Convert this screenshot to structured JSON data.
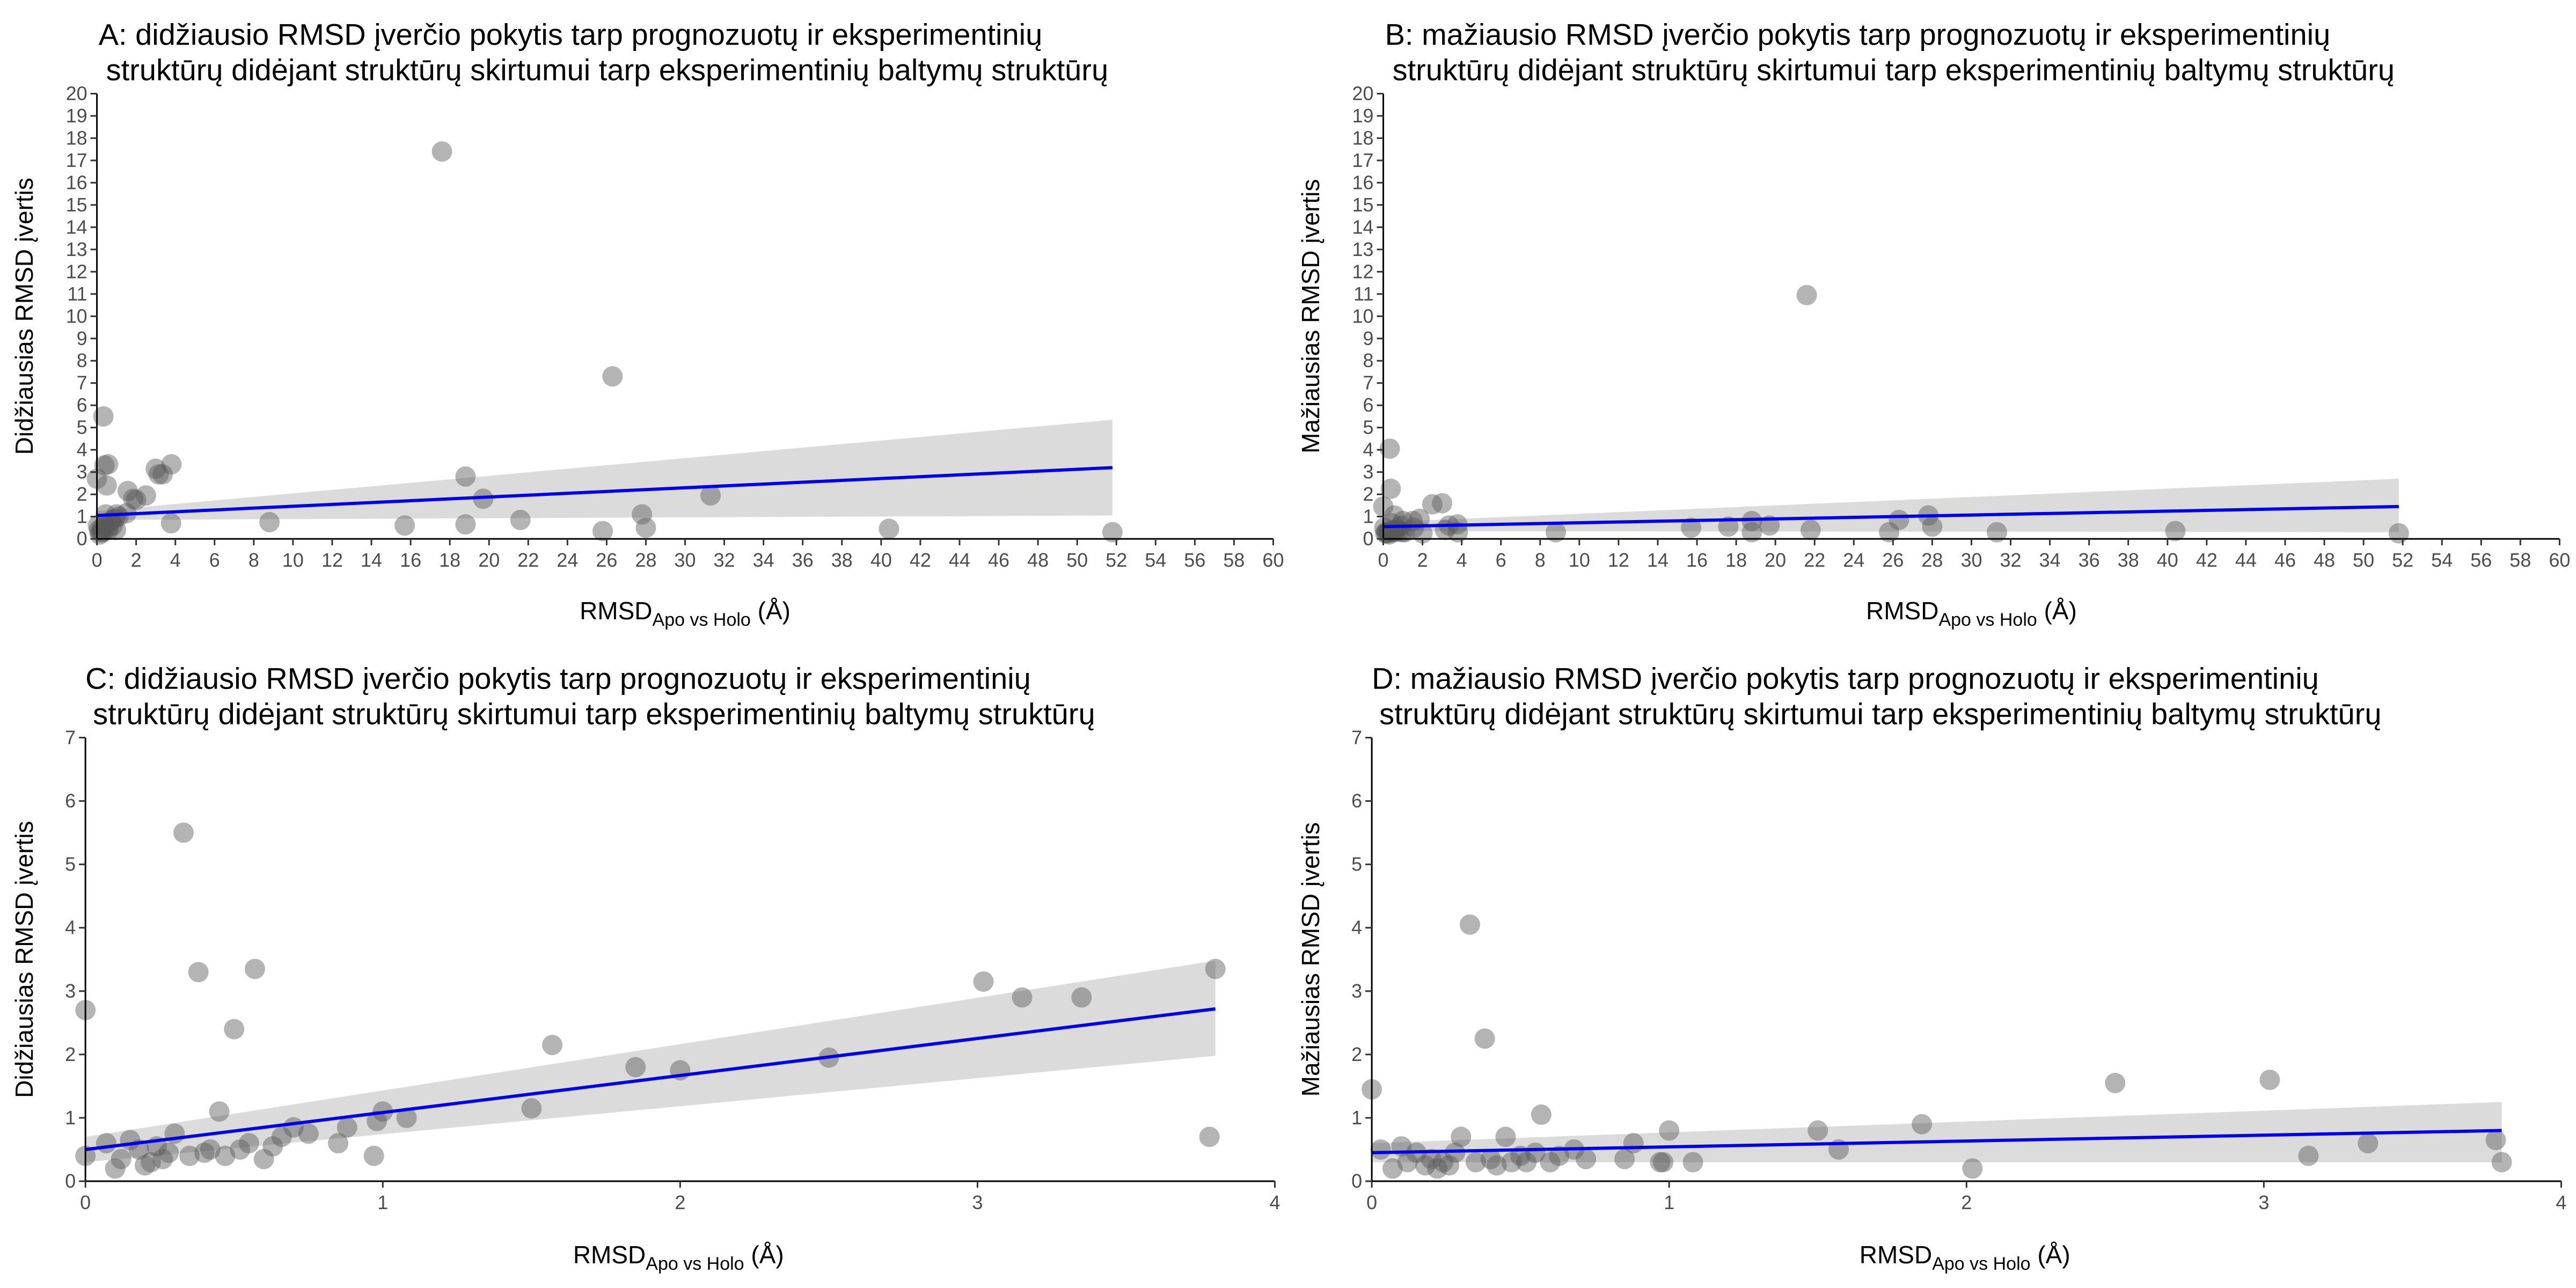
{
  "chart_data": [
    {
      "id": "A",
      "type": "scatter",
      "title": [
        "A: didžiausio RMSD įverčio pokytis tarp prognozuotų ir eksperimentinių",
        "struktūrų didėjant struktūrų skirtumui tarp eksperimentinių baltymų struktūrų"
      ],
      "xlabel": {
        "main": "RMSD",
        "sub": "Apo vs Holo",
        "unit": " (Å)"
      },
      "ylabel": "Didžiausias RMSD įvertis",
      "xlim": [
        0,
        60
      ],
      "ylim": [
        0,
        20
      ],
      "xticks": [
        0,
        2,
        4,
        6,
        8,
        10,
        12,
        14,
        16,
        18,
        20,
        22,
        24,
        26,
        28,
        30,
        32,
        34,
        36,
        38,
        40,
        42,
        44,
        46,
        48,
        50,
        52,
        54,
        56,
        58,
        60
      ],
      "yticks": [
        0,
        1,
        2,
        3,
        4,
        5,
        6,
        7,
        8,
        9,
        10,
        11,
        12,
        13,
        14,
        15,
        16,
        17,
        18,
        19,
        20
      ],
      "point_color": "#595959",
      "line_color": "#0000ee",
      "band_color": "#d9d9d9",
      "points": [
        [
          0.0,
          2.7
        ],
        [
          0.05,
          0.6
        ],
        [
          0.1,
          0.4
        ],
        [
          0.15,
          0.2
        ],
        [
          0.2,
          0.3
        ],
        [
          0.25,
          0.5
        ],
        [
          0.3,
          0.3
        ],
        [
          0.33,
          5.5
        ],
        [
          0.38,
          3.3
        ],
        [
          0.4,
          0.6
        ],
        [
          0.45,
          1.1
        ],
        [
          0.5,
          2.4
        ],
        [
          0.55,
          0.5
        ],
        [
          0.57,
          3.35
        ],
        [
          0.6,
          0.4
        ],
        [
          0.7,
          0.8
        ],
        [
          0.8,
          0.6
        ],
        [
          0.9,
          0.9
        ],
        [
          0.97,
          0.4
        ],
        [
          1.0,
          1.1
        ],
        [
          1.1,
          1.0
        ],
        [
          1.5,
          1.15
        ],
        [
          1.57,
          2.15
        ],
        [
          1.85,
          1.8
        ],
        [
          2.0,
          1.75
        ],
        [
          2.5,
          1.95
        ],
        [
          3.0,
          3.15
        ],
        [
          3.15,
          2.9
        ],
        [
          3.35,
          2.9
        ],
        [
          3.78,
          0.7
        ],
        [
          3.8,
          3.35
        ],
        [
          8.8,
          0.75
        ],
        [
          15.7,
          0.6
        ],
        [
          17.6,
          17.4
        ],
        [
          18.8,
          0.65
        ],
        [
          18.8,
          2.8
        ],
        [
          19.7,
          1.8
        ],
        [
          21.6,
          0.85
        ],
        [
          25.8,
          0.35
        ],
        [
          26.3,
          7.3
        ],
        [
          27.8,
          1.1
        ],
        [
          28.0,
          0.5
        ],
        [
          31.3,
          1.95
        ],
        [
          40.4,
          0.45
        ],
        [
          51.8,
          0.3
        ]
      ],
      "fit": {
        "x": [
          0,
          51.8
        ],
        "y": [
          1.05,
          3.2
        ],
        "lower": [
          0.85,
          1.05
        ],
        "upper": [
          1.25,
          5.35
        ]
      }
    },
    {
      "id": "B",
      "type": "scatter",
      "title": [
        "B: mažiausio RMSD įverčio pokytis tarp prognozuotų ir eksperimentinių",
        "struktūrų didėjant struktūrų skirtumui tarp eksperimentinių baltymų struktūrų"
      ],
      "xlabel": {
        "main": "RMSD",
        "sub": "Apo vs Holo",
        "unit": " (Å)"
      },
      "ylabel": "Mažiausias RMSD įvertis",
      "xlim": [
        0,
        60
      ],
      "ylim": [
        0,
        20
      ],
      "xticks": [
        0,
        2,
        4,
        6,
        8,
        10,
        12,
        14,
        16,
        18,
        20,
        22,
        24,
        26,
        28,
        30,
        32,
        34,
        36,
        38,
        40,
        42,
        44,
        46,
        48,
        50,
        52,
        54,
        56,
        58,
        60
      ],
      "yticks": [
        0,
        1,
        2,
        3,
        4,
        5,
        6,
        7,
        8,
        9,
        10,
        11,
        12,
        13,
        14,
        15,
        16,
        17,
        18,
        19,
        20
      ],
      "point_color": "#595959",
      "line_color": "#0000ee",
      "band_color": "#d9d9d9",
      "points": [
        [
          0.0,
          1.45
        ],
        [
          0.05,
          0.5
        ],
        [
          0.1,
          0.25
        ],
        [
          0.15,
          0.3
        ],
        [
          0.2,
          0.25
        ],
        [
          0.25,
          0.3
        ],
        [
          0.3,
          0.2
        ],
        [
          0.33,
          4.05
        ],
        [
          0.38,
          2.25
        ],
        [
          0.4,
          0.3
        ],
        [
          0.45,
          0.7
        ],
        [
          0.5,
          0.35
        ],
        [
          0.55,
          0.4
        ],
        [
          0.57,
          1.05
        ],
        [
          0.6,
          0.3
        ],
        [
          0.7,
          0.45
        ],
        [
          0.8,
          0.35
        ],
        [
          0.9,
          0.6
        ],
        [
          0.97,
          0.3
        ],
        [
          1.0,
          0.8
        ],
        [
          1.1,
          0.3
        ],
        [
          1.5,
          0.8
        ],
        [
          1.57,
          0.5
        ],
        [
          1.85,
          0.9
        ],
        [
          2.0,
          0.25
        ],
        [
          2.5,
          1.55
        ],
        [
          3.0,
          1.6
        ],
        [
          3.15,
          0.4
        ],
        [
          3.35,
          0.6
        ],
        [
          3.78,
          0.65
        ],
        [
          3.8,
          0.3
        ],
        [
          8.8,
          0.3
        ],
        [
          15.7,
          0.5
        ],
        [
          17.6,
          0.55
        ],
        [
          18.8,
          0.8
        ],
        [
          18.8,
          0.3
        ],
        [
          19.7,
          0.6
        ],
        [
          21.6,
          10.95
        ],
        [
          21.8,
          0.4
        ],
        [
          25.8,
          0.3
        ],
        [
          26.3,
          0.85
        ],
        [
          27.8,
          1.05
        ],
        [
          28.0,
          0.55
        ],
        [
          31.3,
          0.3
        ],
        [
          40.4,
          0.35
        ],
        [
          51.8,
          0.25
        ]
      ],
      "fit": {
        "x": [
          0,
          51.8
        ],
        "y": [
          0.55,
          1.45
        ],
        "lower": [
          0.35,
          0.3
        ],
        "upper": [
          0.75,
          2.7
        ]
      }
    },
    {
      "id": "C",
      "type": "scatter",
      "title": [
        "C: didžiausio RMSD įverčio pokytis tarp prognozuotų ir eksperimentinių",
        "struktūrų didėjant struktūrų skirtumui tarp eksperimentinių baltymų struktūrų"
      ],
      "xlabel": {
        "main": "RMSD",
        "sub": "Apo vs Holo",
        "unit": " (Å)"
      },
      "ylabel": "Didžiausias RMSD įvertis",
      "xlim": [
        0,
        4
      ],
      "ylim": [
        0,
        7
      ],
      "xticks": [
        0,
        1,
        2,
        3,
        4
      ],
      "yticks": [
        0,
        1,
        2,
        3,
        4,
        5,
        6,
        7
      ],
      "point_color": "#595959",
      "line_color": "#0000ee",
      "band_color": "#d9d9d9",
      "points": [
        [
          0.0,
          2.7
        ],
        [
          0.0,
          0.4
        ],
        [
          0.07,
          0.6
        ],
        [
          0.1,
          0.2
        ],
        [
          0.12,
          0.35
        ],
        [
          0.15,
          0.65
        ],
        [
          0.18,
          0.5
        ],
        [
          0.2,
          0.25
        ],
        [
          0.22,
          0.3
        ],
        [
          0.24,
          0.55
        ],
        [
          0.26,
          0.35
        ],
        [
          0.28,
          0.45
        ],
        [
          0.3,
          0.75
        ],
        [
          0.33,
          5.5
        ],
        [
          0.35,
          0.4
        ],
        [
          0.38,
          3.3
        ],
        [
          0.4,
          0.45
        ],
        [
          0.42,
          0.5
        ],
        [
          0.45,
          1.1
        ],
        [
          0.47,
          0.4
        ],
        [
          0.5,
          2.4
        ],
        [
          0.52,
          0.5
        ],
        [
          0.55,
          0.6
        ],
        [
          0.57,
          3.35
        ],
        [
          0.6,
          0.35
        ],
        [
          0.63,
          0.55
        ],
        [
          0.66,
          0.7
        ],
        [
          0.7,
          0.85
        ],
        [
          0.75,
          0.75
        ],
        [
          0.85,
          0.6
        ],
        [
          0.88,
          0.85
        ],
        [
          0.97,
          0.4
        ],
        [
          0.98,
          0.95
        ],
        [
          1.0,
          1.1
        ],
        [
          1.08,
          1.0
        ],
        [
          1.5,
          1.15
        ],
        [
          1.57,
          2.15
        ],
        [
          1.85,
          1.8
        ],
        [
          2.0,
          1.75
        ],
        [
          2.5,
          1.95
        ],
        [
          3.02,
          3.15
        ],
        [
          3.15,
          2.9
        ],
        [
          3.35,
          2.9
        ],
        [
          3.78,
          0.7
        ],
        [
          3.8,
          3.35
        ]
      ],
      "fit": {
        "x": [
          0,
          3.8
        ],
        "y": [
          0.5,
          2.72
        ],
        "lower": [
          0.3,
          1.98
        ],
        "upper": [
          0.7,
          3.48
        ]
      }
    },
    {
      "id": "D",
      "type": "scatter",
      "title": [
        "D: mažiausio RMSD įverčio pokytis tarp prognozuotų ir eksperimentinių",
        "struktūrų didėjant struktūrų skirtumui tarp eksperimentinių baltymų struktūrų"
      ],
      "xlabel": {
        "main": "RMSD",
        "sub": "Apo vs Holo",
        "unit": " (Å)"
      },
      "ylabel": "Mažiausias RMSD įvertis",
      "xlim": [
        0,
        4
      ],
      "ylim": [
        0,
        7
      ],
      "xticks": [
        0,
        1,
        2,
        3,
        4
      ],
      "yticks": [
        0,
        1,
        2,
        3,
        4,
        5,
        6,
        7
      ],
      "point_color": "#595959",
      "line_color": "#0000ee",
      "band_color": "#d9d9d9",
      "points": [
        [
          0.0,
          1.45
        ],
        [
          0.03,
          0.5
        ],
        [
          0.07,
          0.2
        ],
        [
          0.1,
          0.55
        ],
        [
          0.12,
          0.3
        ],
        [
          0.15,
          0.45
        ],
        [
          0.18,
          0.25
        ],
        [
          0.2,
          0.35
        ],
        [
          0.22,
          0.2
        ],
        [
          0.24,
          0.3
        ],
        [
          0.26,
          0.25
        ],
        [
          0.28,
          0.45
        ],
        [
          0.3,
          0.7
        ],
        [
          0.33,
          4.05
        ],
        [
          0.35,
          0.3
        ],
        [
          0.38,
          2.25
        ],
        [
          0.4,
          0.35
        ],
        [
          0.42,
          0.25
        ],
        [
          0.45,
          0.7
        ],
        [
          0.47,
          0.3
        ],
        [
          0.5,
          0.4
        ],
        [
          0.52,
          0.3
        ],
        [
          0.55,
          0.45
        ],
        [
          0.57,
          1.05
        ],
        [
          0.6,
          0.3
        ],
        [
          0.63,
          0.4
        ],
        [
          0.68,
          0.5
        ],
        [
          0.72,
          0.35
        ],
        [
          0.85,
          0.35
        ],
        [
          0.88,
          0.6
        ],
        [
          0.97,
          0.3
        ],
        [
          0.98,
          0.3
        ],
        [
          1.0,
          0.8
        ],
        [
          1.08,
          0.3
        ],
        [
          1.5,
          0.8
        ],
        [
          1.57,
          0.5
        ],
        [
          1.85,
          0.9
        ],
        [
          2.02,
          0.2
        ],
        [
          2.5,
          1.55
        ],
        [
          3.02,
          1.6
        ],
        [
          3.15,
          0.4
        ],
        [
          3.35,
          0.6
        ],
        [
          3.78,
          0.65
        ],
        [
          3.8,
          0.3
        ]
      ],
      "fit": {
        "x": [
          0,
          3.8
        ],
        "y": [
          0.45,
          0.8
        ],
        "lower": [
          0.3,
          0.3
        ],
        "upper": [
          0.6,
          1.25
        ]
      }
    }
  ]
}
